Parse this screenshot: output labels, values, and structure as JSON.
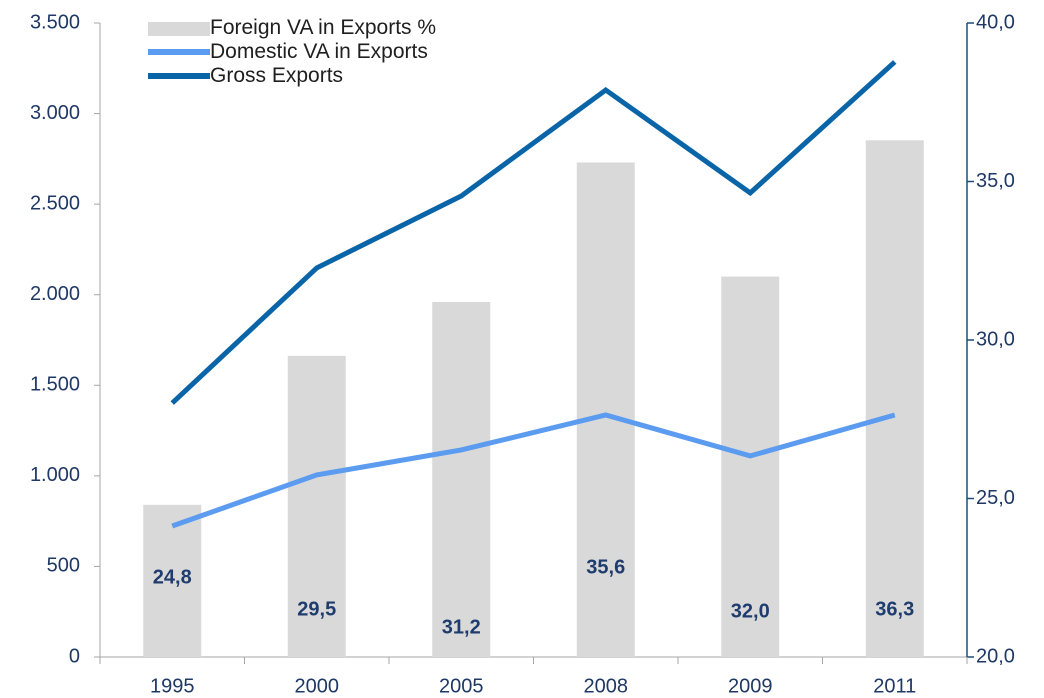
{
  "chart_data": {
    "type": "bar",
    "categories": [
      "1995",
      "2000",
      "2005",
      "2008",
      "2009",
      "2011"
    ],
    "series": [
      {
        "name": "Foreign VA in Exports %",
        "type": "bar",
        "axis": "y2",
        "color": "#d9d9d9",
        "values": [
          24.8,
          29.5,
          31.2,
          35.6,
          32.0,
          36.3
        ],
        "value_labels": [
          "24,8",
          "29,5",
          "31,2",
          "35,6",
          "32,0",
          "36,3"
        ]
      },
      {
        "name": "Domestic VA in Exports",
        "type": "line",
        "color": "#5b9bf0",
        "values": [
          723,
          1005,
          1143,
          1336,
          1110,
          1336
        ]
      },
      {
        "name": "Gross Exports",
        "type": "line",
        "color": "#0a64a8",
        "values": [
          1402,
          2148,
          2545,
          3130,
          2562,
          3285
        ]
      }
    ],
    "ylim": [
      0,
      3500
    ],
    "yticks": [
      0,
      500,
      {
        "value": 1000,
        "label": "1.000"
      },
      {
        "value": 1500,
        "label": "1.500"
      },
      {
        "value": 2000,
        "label": "2.000"
      },
      {
        "value": 2500,
        "label": "2.500"
      },
      {
        "value": 3000,
        "label": "3.000"
      },
      {
        "value": 3500,
        "label": "3.500"
      }
    ],
    "y2lim": [
      20,
      40
    ],
    "y2ticks": [
      {
        "value": 20,
        "label": "20,0"
      },
      {
        "value": 25,
        "label": "25,0"
      },
      {
        "value": 30,
        "label": "30,0"
      },
      {
        "value": 35,
        "label": "35,0"
      },
      {
        "value": 40,
        "label": "40,0"
      }
    ],
    "legend": "top-left"
  }
}
